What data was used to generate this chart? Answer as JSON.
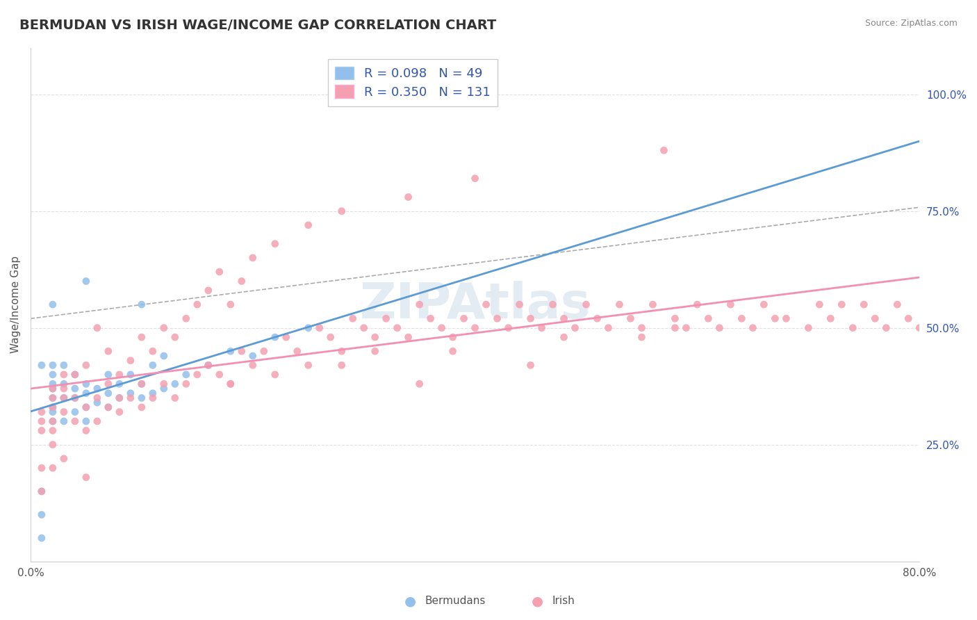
{
  "title": "BERMUDAN VS IRISH WAGE/INCOME GAP CORRELATION CHART",
  "source": "Source: ZipAtlas.com",
  "xlabel_bottom": "",
  "ylabel": "Wage/Income Gap",
  "x_min": 0.0,
  "x_max": 0.8,
  "y_min": 0.0,
  "y_max": 1.1,
  "x_ticks": [
    0.0,
    0.1,
    0.2,
    0.3,
    0.4,
    0.5,
    0.6,
    0.7,
    0.8
  ],
  "x_tick_labels": [
    "0.0%",
    "",
    "",
    "",
    "",
    "",
    "",
    "",
    "80.0%"
  ],
  "y_ticks_right": [
    0.25,
    0.5,
    0.75,
    1.0
  ],
  "y_tick_labels_right": [
    "25.0%",
    "50.0%",
    "75.0%",
    "100.0%"
  ],
  "bermudans_color": "#92BFEB",
  "irish_color": "#F4A0B0",
  "bermudans_line_color": "#5B9BD5",
  "irish_line_color": "#F48FB1",
  "irish_dash_line_color": "#AAAAAA",
  "legend_label_1": "R = 0.098   N = 49",
  "legend_label_2": "R = 0.350   N = 131",
  "watermark": "ZIPAtlas",
  "watermark_color": "#C8D8E8",
  "background_color": "#FFFFFF",
  "grid_color": "#E0E0E0",
  "title_color": "#333333",
  "axis_label_color": "#666666",
  "legend_text_color": "#3355AA",
  "R_bermudan": 0.098,
  "N_bermudan": 49,
  "R_irish": 0.35,
  "N_irish": 131,
  "bermudans_x": [
    0.01,
    0.01,
    0.01,
    0.01,
    0.02,
    0.02,
    0.02,
    0.02,
    0.02,
    0.02,
    0.02,
    0.02,
    0.02,
    0.03,
    0.03,
    0.03,
    0.03,
    0.04,
    0.04,
    0.04,
    0.04,
    0.05,
    0.05,
    0.05,
    0.05,
    0.05,
    0.06,
    0.06,
    0.07,
    0.07,
    0.07,
    0.08,
    0.08,
    0.09,
    0.09,
    0.1,
    0.1,
    0.1,
    0.11,
    0.11,
    0.12,
    0.12,
    0.13,
    0.14,
    0.16,
    0.18,
    0.2,
    0.22,
    0.25
  ],
  "bermudans_y": [
    0.05,
    0.1,
    0.15,
    0.42,
    0.3,
    0.32,
    0.33,
    0.35,
    0.37,
    0.38,
    0.4,
    0.42,
    0.55,
    0.3,
    0.35,
    0.38,
    0.42,
    0.32,
    0.35,
    0.37,
    0.4,
    0.3,
    0.33,
    0.36,
    0.38,
    0.6,
    0.34,
    0.37,
    0.33,
    0.36,
    0.4,
    0.35,
    0.38,
    0.36,
    0.4,
    0.35,
    0.38,
    0.55,
    0.36,
    0.42,
    0.37,
    0.44,
    0.38,
    0.4,
    0.42,
    0.45,
    0.44,
    0.48,
    0.5
  ],
  "irish_x": [
    0.01,
    0.01,
    0.01,
    0.01,
    0.01,
    0.02,
    0.02,
    0.02,
    0.02,
    0.02,
    0.02,
    0.02,
    0.03,
    0.03,
    0.03,
    0.03,
    0.03,
    0.04,
    0.04,
    0.04,
    0.05,
    0.05,
    0.05,
    0.06,
    0.06,
    0.06,
    0.07,
    0.07,
    0.07,
    0.08,
    0.08,
    0.09,
    0.09,
    0.1,
    0.1,
    0.1,
    0.11,
    0.11,
    0.12,
    0.12,
    0.13,
    0.13,
    0.14,
    0.14,
    0.15,
    0.15,
    0.16,
    0.16,
    0.17,
    0.17,
    0.18,
    0.18,
    0.19,
    0.19,
    0.2,
    0.2,
    0.21,
    0.22,
    0.22,
    0.23,
    0.24,
    0.25,
    0.25,
    0.26,
    0.27,
    0.28,
    0.28,
    0.29,
    0.3,
    0.31,
    0.31,
    0.32,
    0.33,
    0.34,
    0.34,
    0.35,
    0.36,
    0.37,
    0.38,
    0.39,
    0.4,
    0.4,
    0.41,
    0.42,
    0.43,
    0.44,
    0.45,
    0.46,
    0.47,
    0.48,
    0.49,
    0.5,
    0.51,
    0.52,
    0.53,
    0.54,
    0.55,
    0.56,
    0.57,
    0.58,
    0.59,
    0.6,
    0.61,
    0.62,
    0.63,
    0.64,
    0.65,
    0.66,
    0.68,
    0.7,
    0.71,
    0.72,
    0.74,
    0.75,
    0.76,
    0.77,
    0.78,
    0.79,
    0.8,
    0.73,
    0.67,
    0.58,
    0.48,
    0.38,
    0.28,
    0.18,
    0.08,
    0.05,
    0.55,
    0.45,
    0.35
  ],
  "irish_y": [
    0.28,
    0.3,
    0.32,
    0.2,
    0.15,
    0.25,
    0.3,
    0.33,
    0.35,
    0.37,
    0.28,
    0.2,
    0.32,
    0.35,
    0.37,
    0.4,
    0.22,
    0.3,
    0.35,
    0.4,
    0.28,
    0.33,
    0.42,
    0.3,
    0.35,
    0.5,
    0.33,
    0.38,
    0.45,
    0.32,
    0.4,
    0.35,
    0.43,
    0.33,
    0.38,
    0.48,
    0.35,
    0.45,
    0.38,
    0.5,
    0.35,
    0.48,
    0.38,
    0.52,
    0.4,
    0.55,
    0.42,
    0.58,
    0.4,
    0.62,
    0.38,
    0.55,
    0.45,
    0.6,
    0.42,
    0.65,
    0.45,
    0.4,
    0.68,
    0.48,
    0.45,
    0.42,
    0.72,
    0.5,
    0.48,
    0.45,
    0.75,
    0.52,
    0.5,
    0.48,
    0.45,
    0.52,
    0.5,
    0.48,
    0.78,
    0.55,
    0.52,
    0.5,
    0.48,
    0.52,
    0.5,
    0.82,
    0.55,
    0.52,
    0.5,
    0.55,
    0.52,
    0.5,
    0.55,
    0.52,
    0.5,
    0.55,
    0.52,
    0.5,
    0.55,
    0.52,
    0.5,
    0.55,
    0.88,
    0.52,
    0.5,
    0.55,
    0.52,
    0.5,
    0.55,
    0.52,
    0.5,
    0.55,
    0.52,
    0.5,
    0.55,
    0.52,
    0.5,
    0.55,
    0.52,
    0.5,
    0.55,
    0.52,
    0.5,
    0.55,
    0.52,
    0.5,
    0.48,
    0.45,
    0.42,
    0.38,
    0.35,
    0.18,
    0.48,
    0.42,
    0.38
  ]
}
